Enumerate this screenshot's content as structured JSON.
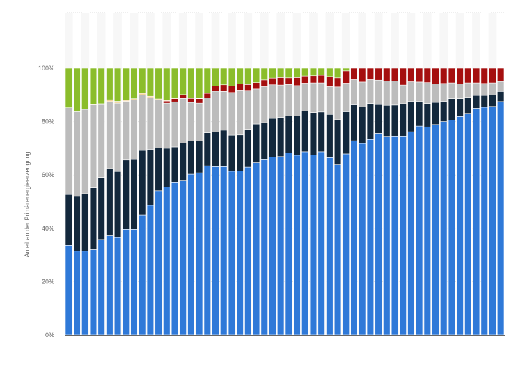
{
  "chart_data": {
    "type": "bar",
    "stacked": true,
    "title": "",
    "xlabel": "",
    "ylabel": "Anteil an der Primärenergieerzeugung",
    "ylim": [
      0,
      100
    ],
    "yticks": [
      0,
      20,
      40,
      60,
      80,
      100
    ],
    "ytick_labels": [
      "0%",
      "20%",
      "40%",
      "60%",
      "80%",
      "100%"
    ],
    "legend": "none",
    "grid": true,
    "colors": [
      "#2f79d8",
      "#13283c",
      "#bcbcbc",
      "#a50f0f",
      "#f2d39a",
      "#8bbd2b"
    ],
    "series": [
      {
        "values": [
          33.6,
          31.4,
          31.4,
          32.0,
          35.8,
          37.2,
          36.5,
          39.6,
          39.6,
          44.9,
          48.6,
          54.1,
          55.5,
          57.1,
          57.8,
          60.3,
          60.8,
          63.4,
          63.1,
          63.1,
          61.4,
          61.5,
          62.9,
          64.6,
          65.7,
          66.7,
          66.9,
          68.3,
          67.4,
          68.7,
          67.5,
          68.7,
          66.5,
          63.8,
          67.9,
          72.8,
          71.8,
          73.3,
          75.6,
          74.5,
          74.6,
          74.6,
          76.2,
          78.3,
          78.0,
          78.9,
          80.0,
          80.6,
          81.9,
          83.1,
          85.0,
          85.4,
          85.7,
          87.5
        ]
      },
      {
        "values": [
          19.1,
          20.6,
          21.6,
          23.2,
          23.3,
          25.2,
          24.8,
          26.0,
          26.2,
          24.3,
          21.0,
          16.0,
          14.5,
          13.4,
          14.1,
          12.4,
          11.9,
          12.4,
          13.0,
          13.7,
          13.5,
          13.5,
          14.2,
          14.5,
          13.9,
          14.5,
          14.7,
          13.8,
          14.7,
          15.3,
          15.9,
          14.9,
          16.2,
          16.9,
          15.8,
          13.5,
          13.7,
          13.5,
          10.8,
          11.6,
          11.6,
          12.1,
          11.3,
          9.2,
          8.8,
          8.3,
          7.6,
          8.0,
          6.7,
          6.0,
          4.8,
          4.4,
          4.3,
          3.8
        ]
      },
      {
        "values": [
          32.5,
          31.7,
          31.6,
          31.1,
          27.3,
          25.1,
          25.6,
          22.0,
          22.4,
          20.8,
          19.4,
          18.0,
          16.9,
          16.9,
          16.8,
          14.5,
          14.2,
          13.1,
          15.3,
          14.5,
          16.0,
          16.8,
          14.6,
          13.1,
          13.5,
          12.6,
          12.1,
          11.8,
          11.4,
          10.4,
          11.1,
          10.9,
          10.4,
          12.3,
          10.7,
          9.4,
          9.3,
          8.9,
          9.1,
          9.1,
          9.0,
          7.0,
          7.4,
          7.3,
          7.8,
          6.9,
          6.7,
          5.9,
          5.5,
          5.4,
          4.7,
          4.5,
          4.5,
          3.7
        ]
      },
      {
        "values": [
          0.0,
          0.0,
          0.0,
          0.0,
          0.0,
          0.0,
          0.0,
          0.0,
          0.0,
          0.0,
          0.0,
          0.0,
          0.8,
          1.2,
          1.2,
          1.5,
          1.7,
          1.7,
          1.9,
          2.5,
          2.5,
          2.3,
          2.2,
          2.4,
          2.5,
          2.5,
          2.8,
          2.5,
          3.0,
          2.7,
          2.7,
          2.9,
          3.8,
          3.4,
          4.6,
          4.3,
          5.2,
          4.3,
          4.5,
          4.8,
          4.8,
          6.3,
          5.1,
          5.2,
          5.4,
          5.9,
          5.7,
          5.5,
          5.9,
          5.5,
          5.5,
          5.7,
          5.5,
          5.0
        ]
      },
      {
        "values": [
          0.0,
          0.0,
          0.0,
          0.3,
          0.3,
          0.7,
          0.7,
          0.4,
          0.4,
          0.6,
          0.5,
          0.4,
          0.3,
          0.3,
          0.2,
          0.2,
          0.1,
          0.1,
          0.0,
          0.0,
          0.0,
          0.0,
          0.0,
          0.0,
          0.0,
          0.0,
          0.0,
          0.0,
          0.0,
          0.0,
          0.0,
          0.0,
          0.0,
          0.0,
          0.0,
          0.0,
          0.0,
          0.0,
          0.0,
          0.0,
          0.0,
          0.0,
          0.0,
          0.0,
          0.0,
          0.0,
          0.0,
          0.0,
          0.0,
          0.0,
          0.0,
          0.0,
          0.0,
          0.0
        ]
      },
      {
        "values": [
          14.8,
          16.3,
          15.4,
          13.4,
          13.3,
          11.8,
          12.4,
          12.0,
          11.4,
          9.4,
          10.5,
          11.5,
          12.0,
          11.1,
          9.9,
          11.1,
          11.3,
          9.3,
          6.7,
          6.2,
          6.6,
          5.9,
          6.1,
          5.4,
          4.4,
          3.7,
          3.5,
          3.6,
          3.5,
          2.9,
          2.8,
          2.6,
          3.1,
          3.6,
          1.0,
          0.0,
          0.0,
          0.0,
          0.0,
          0.0,
          0.0,
          0.0,
          0.0,
          0.0,
          0.0,
          0.0,
          0.0,
          0.0,
          0.0,
          0.0,
          0.0,
          0.0,
          0.0,
          0.0
        ]
      }
    ]
  }
}
